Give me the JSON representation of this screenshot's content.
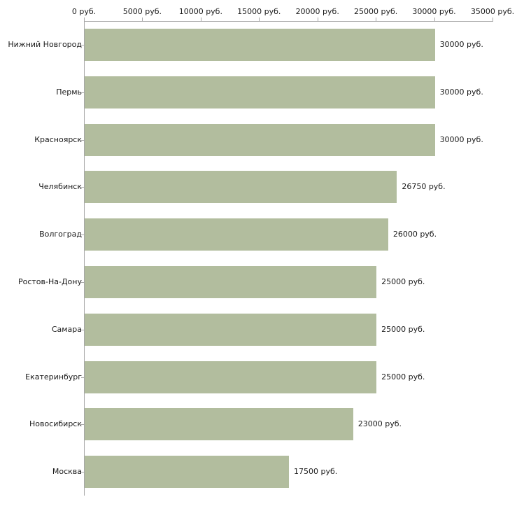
{
  "chart_data": {
    "type": "bar",
    "orientation": "horizontal",
    "title": "",
    "xlabel": "",
    "ylabel": "",
    "categories": [
      "Нижний Новгород",
      "Пермь",
      "Красноярск",
      "Челябинск",
      "Волгоград",
      "Ростов-На-Дону",
      "Самара",
      "Екатеринбург",
      "Новосибирск",
      "Москва"
    ],
    "values": [
      30000,
      30000,
      30000,
      26750,
      26000,
      25000,
      25000,
      25000,
      23000,
      17500
    ],
    "value_labels": [
      "30000 руб.",
      "30000 руб.",
      "30000 руб.",
      "26750 руб.",
      "26000 руб.",
      "25000 руб.",
      "25000 руб.",
      "25000 руб.",
      "23000 руб.",
      "17500 руб."
    ],
    "x_ticks": [
      0,
      5000,
      10000,
      15000,
      20000,
      25000,
      30000,
      35000
    ],
    "x_tick_labels": [
      "0 руб.",
      "5000 руб.",
      "10000 руб.",
      "15000 руб.",
      "20000 руб.",
      "25000 руб.",
      "30000 руб.",
      "35000 руб."
    ],
    "xlim": [
      0,
      35000
    ],
    "grid": false,
    "legend": false,
    "bar_color": "#b2bd9e",
    "axis_color": "#a6a6a6",
    "text_color": "#1a1a1a",
    "background_color": "#ffffff"
  }
}
